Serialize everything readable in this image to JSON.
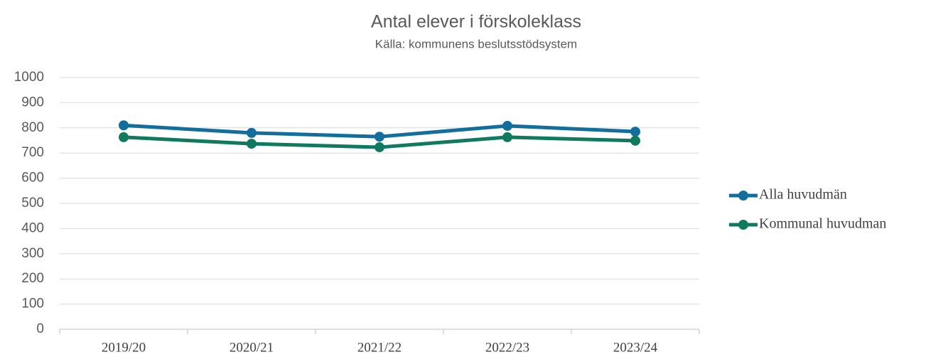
{
  "chart_data": {
    "type": "line",
    "title": "Antal elever i förskoleklass",
    "subtitle": "Källa: kommunens beslutsstödsystem",
    "categories": [
      "2019/20",
      "2020/21",
      "2021/22",
      "2022/23",
      "2023/24"
    ],
    "series": [
      {
        "name": "Alla huvudmän",
        "color": "#126e9c",
        "values": [
          810,
          780,
          765,
          808,
          785
        ]
      },
      {
        "name": "Kommunal huvudman",
        "color": "#0f7a5e",
        "values": [
          763,
          737,
          723,
          763,
          749
        ]
      }
    ],
    "ylim": [
      0,
      1000
    ],
    "yticks": [
      0,
      100,
      200,
      300,
      400,
      500,
      600,
      700,
      800,
      900,
      1000
    ],
    "grid": true,
    "legend": "right"
  }
}
